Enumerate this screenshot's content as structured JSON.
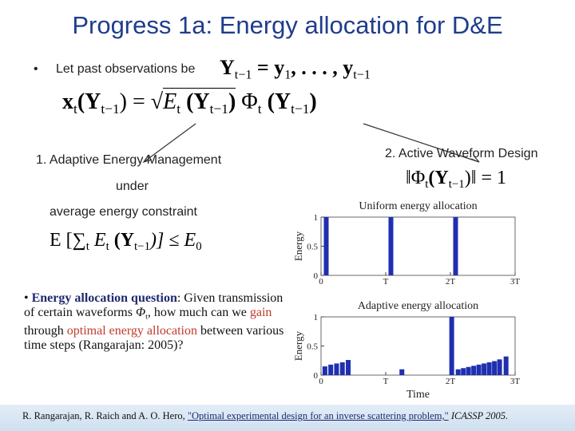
{
  "title": "Progress 1a: Energy allocation for D&E",
  "observations": {
    "bullet": "•",
    "text": "Let past observations be",
    "formula": [
      "Y",
      "t−1",
      " = y",
      "1",
      ", . . . , y",
      "t−1"
    ]
  },
  "signal_formula": [
    "x",
    "t",
    "(Y",
    "t−1",
    ") = ",
    "√",
    "E",
    "t",
    " (Y",
    "t−1",
    ")",
    " Φ",
    "t",
    " (Y",
    "t−1",
    ")"
  ],
  "left": {
    "heading": "1. Adaptive Energy Management",
    "under": "under",
    "constraint_text": "average energy constraint",
    "constraint": [
      "E [",
      "∑",
      "t",
      " E",
      "t",
      " (Y",
      "t−1",
      ")] ≤ E",
      "0"
    ]
  },
  "right": {
    "heading": "2. Active Waveform Design",
    "norm": [
      "‖Φ",
      "t",
      "(Y",
      "t−1",
      ")‖ = 1"
    ]
  },
  "question": [
    "• ",
    "Energy allocation question",
    ": Given transmission of certain waveforms ",
    "Φ",
    "t",
    ", how much can we ",
    "gain",
    " through ",
    "optimal energy allocation",
    " between various time steps (Rangarajan: 2005)?"
  ],
  "charts": [
    {
      "title": "Uniform energy allocation",
      "ylabel": "Energy",
      "color": "#1f2fb0",
      "x": [
        0.08,
        1.08,
        2.08
      ],
      "values": [
        1,
        1,
        1
      ],
      "xlim": [
        0,
        3
      ],
      "xticks": [
        0,
        {
          "value": 1,
          "label": "T"
        },
        {
          "value": 2,
          "label": "2T"
        },
        {
          "value": 3,
          "label": "3T"
        }
      ],
      "ylim": [
        0,
        1
      ],
      "yticks": [
        0,
        0.5,
        1
      ]
    },
    {
      "title": "Adaptive energy allocation",
      "ylabel": "Energy",
      "xlabel": "Time",
      "color": "#1f2fb0",
      "x": [
        0.06,
        0.15,
        0.24,
        0.33,
        0.42,
        1.25,
        2.02,
        2.12,
        2.2,
        2.28,
        2.36,
        2.44,
        2.52,
        2.6,
        2.68,
        2.76,
        2.86
      ],
      "values": [
        0.15,
        0.18,
        0.2,
        0.22,
        0.26,
        0.1,
        1,
        0.1,
        0.12,
        0.14,
        0.16,
        0.18,
        0.2,
        0.22,
        0.24,
        0.27,
        0.32
      ],
      "xlim": [
        0,
        3
      ],
      "xticks": [
        0,
        {
          "value": 1,
          "label": "T"
        },
        {
          "value": 2,
          "label": "2T"
        },
        {
          "value": 3,
          "label": "3T"
        }
      ],
      "ylim": [
        0,
        1
      ],
      "yticks": [
        0,
        0.5,
        1
      ]
    }
  ],
  "footer": {
    "authors": "R. Rangarajan, R. Raich and A. O. Hero, ",
    "paper": "\"Optimal experimental design for an inverse scattering problem,\"",
    "venue": " ICASSP 2005."
  }
}
